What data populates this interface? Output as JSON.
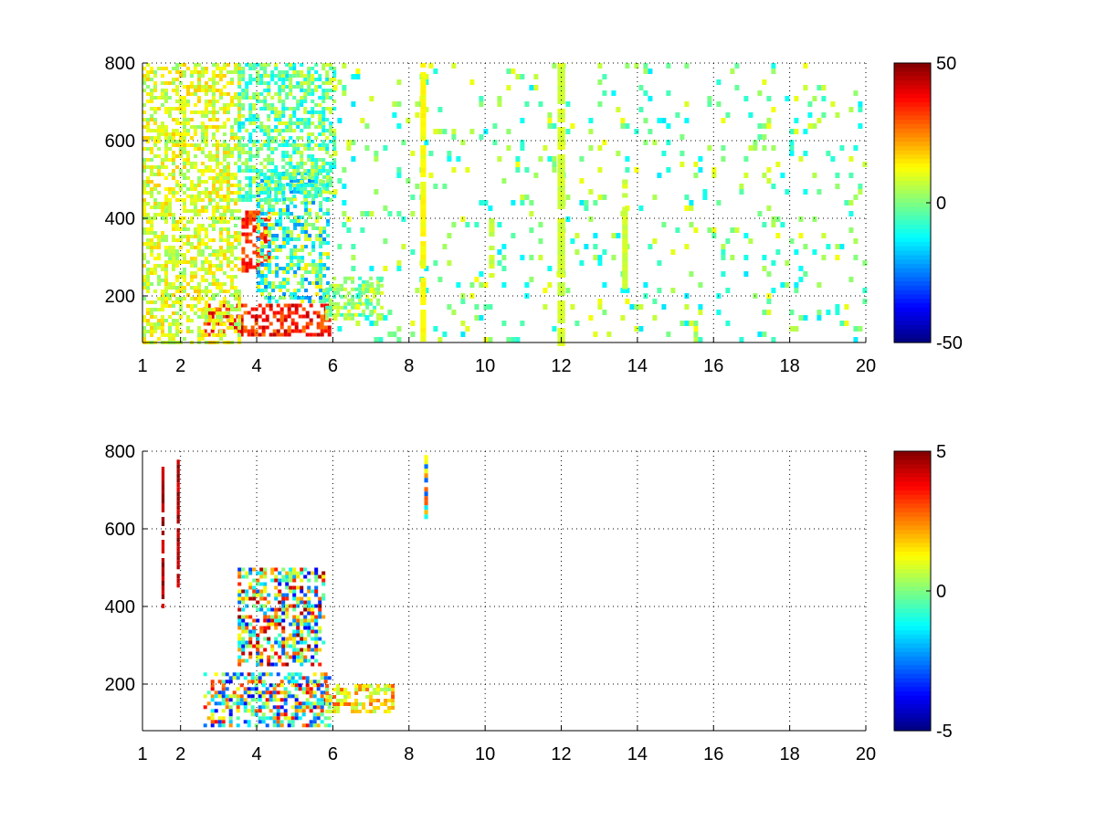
{
  "chart_data": [
    {
      "type": "heatmap",
      "title": "",
      "xlabel": "",
      "ylabel": "",
      "xlim": [
        1,
        20
      ],
      "ylim": [
        80,
        800
      ],
      "xticks": [
        1,
        2,
        4,
        6,
        8,
        10,
        12,
        14,
        16,
        18,
        20
      ],
      "yticks": [
        200,
        400,
        600,
        800
      ],
      "grid": true,
      "colormap": "jet",
      "colorbar": {
        "min": -50,
        "max": 50,
        "ticks": [
          50,
          0,
          -50
        ]
      },
      "features": [
        {
          "kind": "blob",
          "x": [
            2.6,
            5.9
          ],
          "y": [
            100,
            180
          ],
          "level": [
            25,
            45
          ]
        },
        {
          "kind": "blob",
          "x": [
            3.6,
            4.3
          ],
          "y": [
            260,
            420
          ],
          "level": [
            25,
            40
          ]
        },
        {
          "kind": "blob",
          "x": [
            4.0,
            5.9
          ],
          "y": [
            190,
            520
          ],
          "level": [
            -25,
            15
          ]
        },
        {
          "kind": "blob",
          "x": [
            5.8,
            7.3
          ],
          "y": [
            140,
            250
          ],
          "level": [
            -10,
            12
          ]
        },
        {
          "kind": "blob",
          "x": [
            1.0,
            3.5
          ],
          "y": [
            80,
            800
          ],
          "level": [
            0,
            18
          ]
        },
        {
          "kind": "blob",
          "x": [
            3.5,
            6.0
          ],
          "y": [
            450,
            800
          ],
          "level": [
            -15,
            10
          ]
        },
        {
          "kind": "sparse",
          "x": [
            6.0,
            20.0
          ],
          "y": [
            80,
            800
          ],
          "level": [
            -15,
            12
          ]
        },
        {
          "kind": "streak",
          "x": [
            8.3,
            8.45
          ],
          "y": [
            80,
            800
          ],
          "level": [
            10,
            14
          ]
        },
        {
          "kind": "streak",
          "x": [
            11.9,
            12.1
          ],
          "y": [
            80,
            800
          ],
          "level": [
            6,
            10
          ]
        },
        {
          "kind": "streak",
          "x": [
            13.6,
            13.75
          ],
          "y": [
            220,
            500
          ],
          "level": [
            6,
            10
          ]
        },
        {
          "kind": "streak",
          "x": [
            10.1,
            10.25
          ],
          "y": [
            250,
            400
          ],
          "level": [
            5,
            9
          ]
        }
      ]
    },
    {
      "type": "heatmap",
      "title": "",
      "xlabel": "",
      "ylabel": "",
      "xlim": [
        1,
        20
      ],
      "ylim": [
        80,
        800
      ],
      "xticks": [
        1,
        2,
        4,
        6,
        8,
        10,
        12,
        14,
        16,
        18,
        20
      ],
      "yticks": [
        200,
        400,
        600,
        800
      ],
      "grid": true,
      "colormap": "jet",
      "colorbar": {
        "min": -5,
        "max": 5,
        "ticks": [
          5,
          0,
          -5
        ]
      },
      "features": [
        {
          "kind": "blob",
          "x": [
            2.6,
            5.9
          ],
          "y": [
            90,
            230
          ],
          "level": [
            -4,
            4
          ]
        },
        {
          "kind": "blob",
          "x": [
            3.5,
            5.8
          ],
          "y": [
            250,
            500
          ],
          "level": [
            -4,
            5
          ]
        },
        {
          "kind": "blob",
          "x": [
            5.8,
            7.6
          ],
          "y": [
            130,
            200
          ],
          "level": [
            0,
            3
          ]
        },
        {
          "kind": "streak",
          "x": [
            1.5,
            1.58
          ],
          "y": [
            380,
            760
          ],
          "level": [
            4,
            5
          ]
        },
        {
          "kind": "streak",
          "x": [
            1.9,
            1.98
          ],
          "y": [
            450,
            790
          ],
          "level": [
            4,
            5
          ]
        },
        {
          "kind": "streak",
          "x": [
            8.4,
            8.5
          ],
          "y": [
            630,
            790
          ],
          "level": [
            -3,
            3
          ]
        }
      ]
    }
  ]
}
